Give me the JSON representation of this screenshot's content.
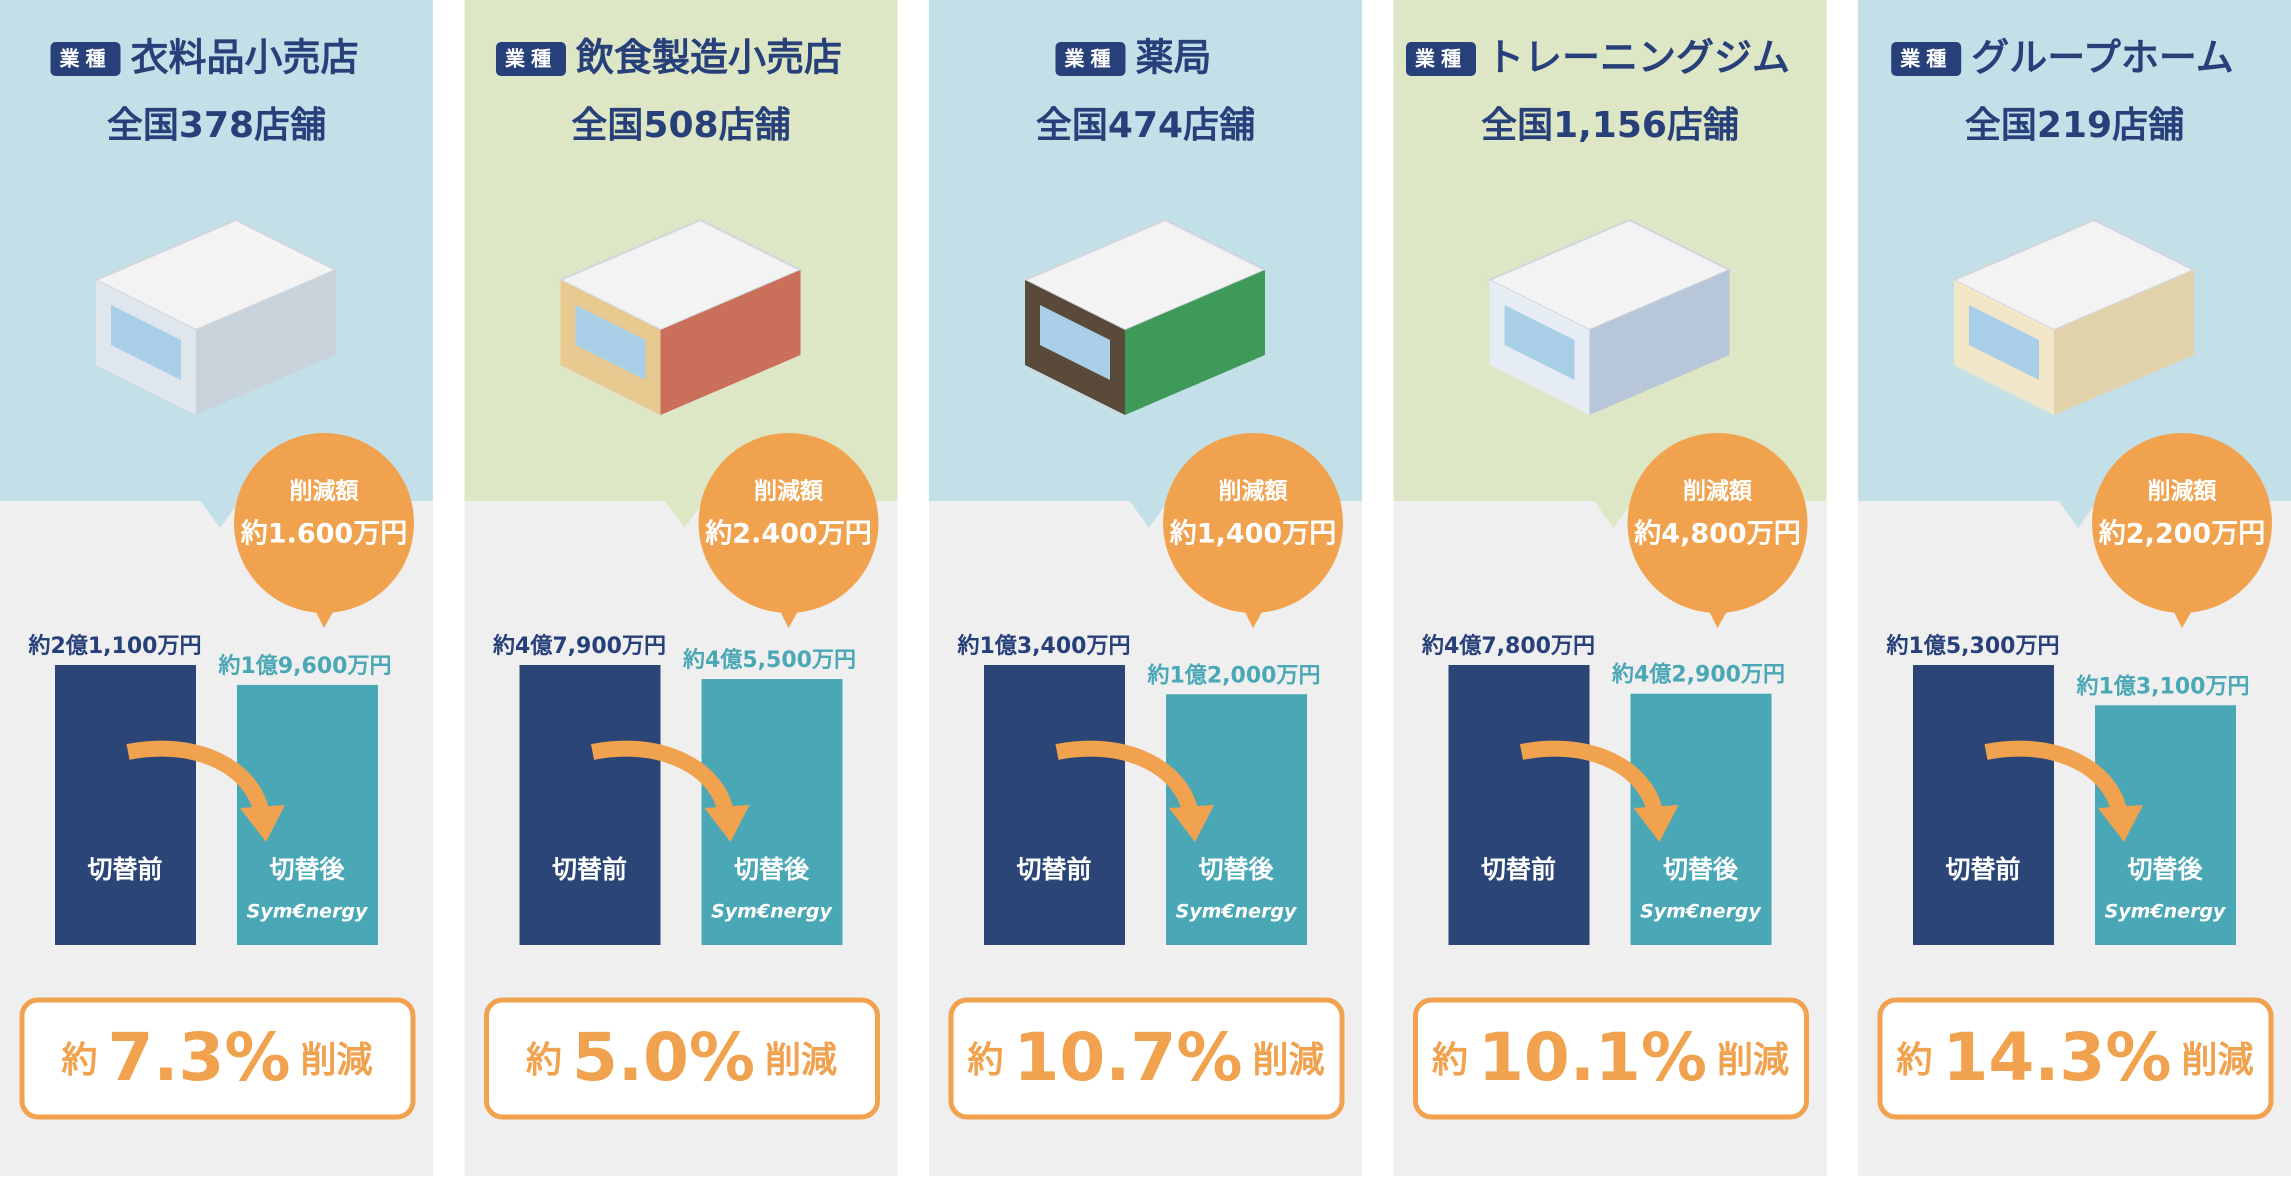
{
  "labels": {
    "badge": "業種",
    "reduction_heading": "削減額",
    "before": "切替前",
    "after": "切替後",
    "brand": "Sym€nergy",
    "approx": "約",
    "reduction_word": "削減"
  },
  "panels": [
    {
      "industry": "衣料品小売店",
      "stores": "全国378店舗",
      "savings": "約1.600万円",
      "before_value": 21100,
      "before_label": "約2億1,100万円",
      "after_value": 19600,
      "after_label": "約1億9,600万円",
      "rate": "7.3%"
    },
    {
      "industry": "飲食製造小売店",
      "stores": "全国508店舗",
      "savings": "約2.400万円",
      "before_value": 47900,
      "before_label": "約4億7,900万円",
      "after_value": 45500,
      "after_label": "約4億5,500万円",
      "rate": "5.0%"
    },
    {
      "industry": "薬局",
      "stores": "全国474店舗",
      "savings": "約1,400万円",
      "before_value": 13400,
      "before_label": "約1億3,400万円",
      "after_value": 12000,
      "after_label": "約1億2,000万円",
      "rate": "10.7%"
    },
    {
      "industry": "トレーニングジム",
      "stores": "全国1,156店舗",
      "savings": "約4,800万円",
      "before_value": 47800,
      "before_label": "約4億7,800万円",
      "after_value": 42900,
      "after_label": "約4億2,900万円",
      "rate": "10.1%"
    },
    {
      "industry": "グループホーム",
      "stores": "全国219店舗",
      "savings": "約2,200万円",
      "before_value": 15300,
      "before_label": "約1億5,300万円",
      "after_value": 13100,
      "after_label": "約1億3,100万円",
      "rate": "14.3%"
    }
  ]
}
